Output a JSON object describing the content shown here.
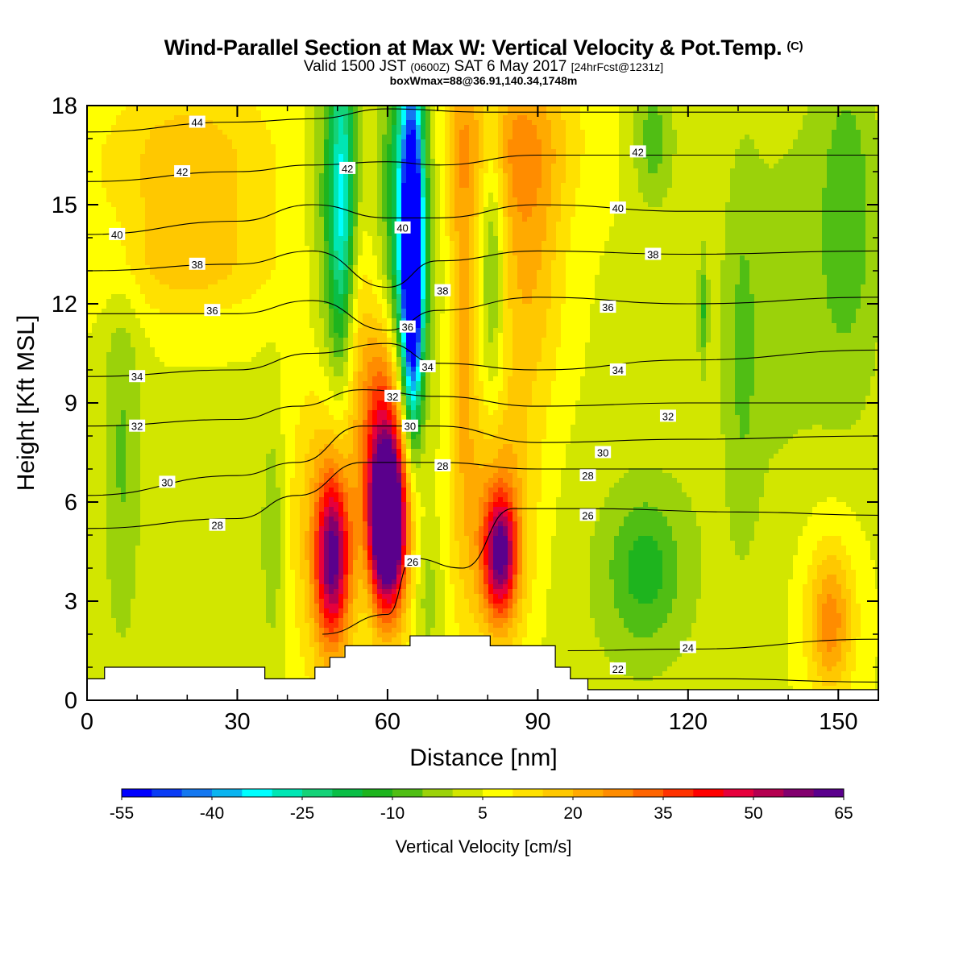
{
  "title": "Wind-Parallel Section at Max W: Vertical Velocity & Pot.Temp.",
  "title_tag": "(C)",
  "subtitle_parts": [
    "Valid 1500 JST",
    "(0600Z)",
    "SAT 6 May 2017",
    "[24hrFcst@1231z]"
  ],
  "info_line": "boxWmax=88@36.91,140.34,1748m",
  "chart_data": {
    "type": "heatmap",
    "xlabel": "Distance [nm]",
    "ylabel": "Height [Kft MSL]",
    "xlim": [
      0,
      158
    ],
    "ylim": [
      0,
      18
    ],
    "x_ticks": [
      0,
      30,
      60,
      90,
      120,
      150
    ],
    "y_ticks": [
      0,
      3,
      6,
      9,
      12,
      15,
      18
    ],
    "colorbar": {
      "label": "Vertical Velocity [cm/s]",
      "levels": [
        -55,
        -50,
        -45,
        -40,
        -35,
        -30,
        -25,
        -20,
        -15,
        -10,
        -5,
        0,
        5,
        10,
        15,
        20,
        25,
        30,
        35,
        40,
        45,
        50,
        55,
        60,
        65
      ],
      "tick_labels": [
        -55,
        -40,
        -25,
        -10,
        5,
        20,
        35,
        50,
        65
      ],
      "colors": [
        "#0000ff",
        "#0a3cf5",
        "#1478f0",
        "#0ab4f0",
        "#00ffff",
        "#00e6b4",
        "#14d278",
        "#0abe46",
        "#1eb41e",
        "#50be14",
        "#9bd20a",
        "#d2e600",
        "#ffff00",
        "#ffe100",
        "#ffc800",
        "#ffaa00",
        "#ff8c00",
        "#ff6400",
        "#ff3200",
        "#ff0000",
        "#e6003c",
        "#b40050",
        "#82006e",
        "#5a008c"
      ]
    },
    "terrain_profile": [
      {
        "x": 0,
        "h": 0.65
      },
      {
        "x": 3.5,
        "h": 0.65
      },
      {
        "x": 3.5,
        "h": 1.0
      },
      {
        "x": 35.5,
        "h": 1.0
      },
      {
        "x": 35.5,
        "h": 0.65
      },
      {
        "x": 45.5,
        "h": 0.65
      },
      {
        "x": 45.5,
        "h": 1.0
      },
      {
        "x": 48.5,
        "h": 1.0
      },
      {
        "x": 48.5,
        "h": 1.3
      },
      {
        "x": 51.5,
        "h": 1.3
      },
      {
        "x": 51.5,
        "h": 1.65
      },
      {
        "x": 64.5,
        "h": 1.65
      },
      {
        "x": 64.5,
        "h": 1.95
      },
      {
        "x": 80.5,
        "h": 1.95
      },
      {
        "x": 80.5,
        "h": 1.65
      },
      {
        "x": 93.5,
        "h": 1.65
      },
      {
        "x": 93.5,
        "h": 1.0
      },
      {
        "x": 96.5,
        "h": 1.0
      },
      {
        "x": 96.5,
        "h": 0.65
      },
      {
        "x": 100,
        "h": 0.65
      },
      {
        "x": 100,
        "h": 0.32
      },
      {
        "x": 158,
        "h": 0.32
      }
    ],
    "w_features": [
      {
        "x": 60,
        "y": 5.3,
        "rx": 3.3,
        "ry": 2.2,
        "w": 65
      },
      {
        "x": 60.5,
        "y": 6.0,
        "rx": 5.0,
        "ry": 4.2,
        "w": 28
      },
      {
        "x": 59,
        "y": 8.2,
        "rx": 4.0,
        "ry": 3.5,
        "w": 22
      },
      {
        "x": 49,
        "y": 4.3,
        "rx": 3.2,
        "ry": 2.4,
        "w": 44
      },
      {
        "x": 48.5,
        "y": 5.3,
        "rx": 7.0,
        "ry": 5.0,
        "w": 20
      },
      {
        "x": 82.5,
        "y": 4.4,
        "rx": 3.2,
        "ry": 1.8,
        "w": 44
      },
      {
        "x": 82,
        "y": 5.2,
        "rx": 7.0,
        "ry": 4.0,
        "w": 20
      },
      {
        "x": 53,
        "y": 11.5,
        "rx": 4.0,
        "ry": 4.0,
        "w": 14
      },
      {
        "x": 75,
        "y": 12.5,
        "rx": 3.0,
        "ry": 8.0,
        "w": 16
      },
      {
        "x": 88,
        "y": 13.5,
        "rx": 7.0,
        "ry": 5.0,
        "w": 16
      },
      {
        "x": 84,
        "y": 17.0,
        "rx": 14.0,
        "ry": 2.5,
        "w": 14
      },
      {
        "x": 20,
        "y": 16.0,
        "rx": 18.0,
        "ry": 3.0,
        "w": 14
      },
      {
        "x": 20,
        "y": 13.0,
        "rx": 18.0,
        "ry": 1.5,
        "w": 8
      },
      {
        "x": 68,
        "y": 3.2,
        "rx": 2.5,
        "ry": 2.0,
        "w": -8
      },
      {
        "x": 55.5,
        "y": 3.5,
        "rx": 1.8,
        "ry": 3.0,
        "w": -4
      },
      {
        "x": 65,
        "y": 13.0,
        "rx": 1.8,
        "ry": 4.5,
        "w": -50
      },
      {
        "x": 64.5,
        "y": 14.2,
        "rx": 3.0,
        "ry": 5.5,
        "w": -32
      },
      {
        "x": 63.5,
        "y": 15.0,
        "rx": 5.5,
        "ry": 6.5,
        "w": -18
      },
      {
        "x": 50,
        "y": 14.5,
        "rx": 4.5,
        "ry": 7.0,
        "w": -18
      },
      {
        "x": 51,
        "y": 14.5,
        "rx": 2.5,
        "ry": 5.0,
        "w": -26
      },
      {
        "x": 81,
        "y": 13.5,
        "rx": 2.5,
        "ry": 5.0,
        "w": -16
      },
      {
        "x": 111.5,
        "y": 4.0,
        "rx": 7.0,
        "ry": 2.2,
        "w": -12
      },
      {
        "x": 109,
        "y": 3.5,
        "rx": 15.0,
        "ry": 4.0,
        "w": -5
      },
      {
        "x": 7,
        "y": 7.5,
        "rx": 4.0,
        "ry": 6.0,
        "w": -10
      },
      {
        "x": 37,
        "y": 5.0,
        "rx": 2.2,
        "ry": 3.5,
        "w": -10
      },
      {
        "x": 140,
        "y": 12.0,
        "rx": 20.0,
        "ry": 9.0,
        "w": -6
      },
      {
        "x": 152,
        "y": 15.0,
        "rx": 6.0,
        "ry": 5.0,
        "w": -10
      },
      {
        "x": 113,
        "y": 17.0,
        "rx": 4.0,
        "ry": 2.0,
        "w": -12
      },
      {
        "x": 131,
        "y": 10.5,
        "rx": 3.0,
        "ry": 5.0,
        "w": -7
      },
      {
        "x": 148.5,
        "y": 2.3,
        "rx": 4.0,
        "ry": 2.0,
        "w": 18
      },
      {
        "x": 148,
        "y": 3.0,
        "rx": 8.0,
        "ry": 3.5,
        "w": 8
      },
      {
        "x": 123,
        "y": 11.8,
        "rx": 0.8,
        "ry": 1.5,
        "w": -12
      }
    ],
    "theta_contours": [
      {
        "value": 22,
        "points": [
          [
            100,
            0.65
          ],
          [
            125,
            0.65
          ],
          [
            158,
            0.55
          ]
        ]
      },
      {
        "value": 24,
        "points": [
          [
            96,
            1.5
          ],
          [
            120,
            1.55
          ],
          [
            158,
            1.85
          ]
        ]
      },
      {
        "value": 26,
        "points": [
          [
            47,
            2.0
          ],
          [
            60,
            2.6
          ],
          [
            65,
            4.3
          ],
          [
            75,
            4.0
          ],
          [
            85,
            5.8
          ],
          [
            100,
            5.8
          ],
          [
            130,
            5.7
          ],
          [
            158,
            5.6
          ]
        ]
      },
      {
        "value": 28,
        "points": [
          [
            0,
            5.2
          ],
          [
            30,
            5.5
          ],
          [
            42,
            6.2
          ],
          [
            55,
            7.2
          ],
          [
            70,
            7.2
          ],
          [
            90,
            7.0
          ],
          [
            120,
            7.0
          ],
          [
            158,
            7.0
          ]
        ]
      },
      {
        "value": 30,
        "points": [
          [
            0,
            6.2
          ],
          [
            30,
            6.8
          ],
          [
            42,
            7.2
          ],
          [
            55,
            8.3
          ],
          [
            70,
            8.3
          ],
          [
            90,
            7.8
          ],
          [
            120,
            7.9
          ],
          [
            158,
            8.0
          ]
        ]
      },
      {
        "value": 32,
        "points": [
          [
            0,
            8.3
          ],
          [
            30,
            8.5
          ],
          [
            42,
            8.9
          ],
          [
            55,
            9.4
          ],
          [
            70,
            9.2
          ],
          [
            90,
            8.9
          ],
          [
            120,
            9.0
          ],
          [
            158,
            9.0
          ]
        ]
      },
      {
        "value": 34,
        "points": [
          [
            0,
            9.8
          ],
          [
            30,
            10.0
          ],
          [
            45,
            10.5
          ],
          [
            60,
            10.8
          ],
          [
            70,
            10.2
          ],
          [
            90,
            10.0
          ],
          [
            120,
            10.3
          ],
          [
            158,
            10.6
          ]
        ]
      },
      {
        "value": 36,
        "points": [
          [
            0,
            11.7
          ],
          [
            30,
            11.7
          ],
          [
            45,
            12.1
          ],
          [
            60,
            11.2
          ],
          [
            70,
            11.8
          ],
          [
            90,
            12.2
          ],
          [
            120,
            12.0
          ],
          [
            158,
            12.2
          ]
        ]
      },
      {
        "value": 38,
        "points": [
          [
            0,
            13.0
          ],
          [
            30,
            13.2
          ],
          [
            45,
            13.6
          ],
          [
            60,
            12.5
          ],
          [
            70,
            13.3
          ],
          [
            90,
            13.6
          ],
          [
            120,
            13.5
          ],
          [
            158,
            13.6
          ]
        ]
      },
      {
        "value": 40,
        "points": [
          [
            0,
            14.1
          ],
          [
            30,
            14.5
          ],
          [
            45,
            15.0
          ],
          [
            60,
            14.6
          ],
          [
            70,
            14.6
          ],
          [
            90,
            15.0
          ],
          [
            120,
            14.8
          ],
          [
            158,
            14.8
          ]
        ]
      },
      {
        "value": 42,
        "points": [
          [
            0,
            15.7
          ],
          [
            30,
            16.0
          ],
          [
            45,
            16.2
          ],
          [
            60,
            16.3
          ],
          [
            70,
            16.2
          ],
          [
            90,
            16.5
          ],
          [
            120,
            16.5
          ],
          [
            158,
            16.5
          ]
        ]
      },
      {
        "value": 44,
        "points": [
          [
            0,
            17.2
          ],
          [
            30,
            17.5
          ],
          [
            45,
            17.6
          ],
          [
            60,
            17.9
          ],
          [
            80,
            17.8
          ],
          [
            100,
            17.8
          ],
          [
            158,
            17.8
          ]
        ]
      }
    ],
    "contour_labels": [
      {
        "text": "44",
        "x": 22,
        "y": 17.5
      },
      {
        "text": "42",
        "x": 19,
        "y": 16.0
      },
      {
        "text": "42",
        "x": 52,
        "y": 16.1
      },
      {
        "text": "42",
        "x": 110,
        "y": 16.6
      },
      {
        "text": "40",
        "x": 6,
        "y": 14.1
      },
      {
        "text": "40",
        "x": 63,
        "y": 14.3
      },
      {
        "text": "40",
        "x": 106,
        "y": 14.9
      },
      {
        "text": "38",
        "x": 22,
        "y": 13.2
      },
      {
        "text": "38",
        "x": 71,
        "y": 12.4
      },
      {
        "text": "38",
        "x": 113,
        "y": 13.5
      },
      {
        "text": "36",
        "x": 25,
        "y": 11.8
      },
      {
        "text": "36",
        "x": 64,
        "y": 11.3
      },
      {
        "text": "36",
        "x": 104,
        "y": 11.9
      },
      {
        "text": "34",
        "x": 10,
        "y": 9.8
      },
      {
        "text": "34",
        "x": 68,
        "y": 10.1
      },
      {
        "text": "34",
        "x": 106,
        "y": 10.0
      },
      {
        "text": "32",
        "x": 10,
        "y": 8.3
      },
      {
        "text": "32",
        "x": 61,
        "y": 9.2
      },
      {
        "text": "32",
        "x": 116,
        "y": 8.6
      },
      {
        "text": "30",
        "x": 16,
        "y": 6.6
      },
      {
        "text": "30",
        "x": 64.5,
        "y": 8.3
      },
      {
        "text": "30",
        "x": 103,
        "y": 7.5
      },
      {
        "text": "28",
        "x": 26,
        "y": 5.3
      },
      {
        "text": "28",
        "x": 71,
        "y": 7.1
      },
      {
        "text": "28",
        "x": 100,
        "y": 6.8
      },
      {
        "text": "26",
        "x": 65,
        "y": 4.2
      },
      {
        "text": "26",
        "x": 100,
        "y": 5.6
      },
      {
        "text": "24",
        "x": 120,
        "y": 1.6
      },
      {
        "text": "22",
        "x": 106,
        "y": 0.95
      }
    ]
  }
}
